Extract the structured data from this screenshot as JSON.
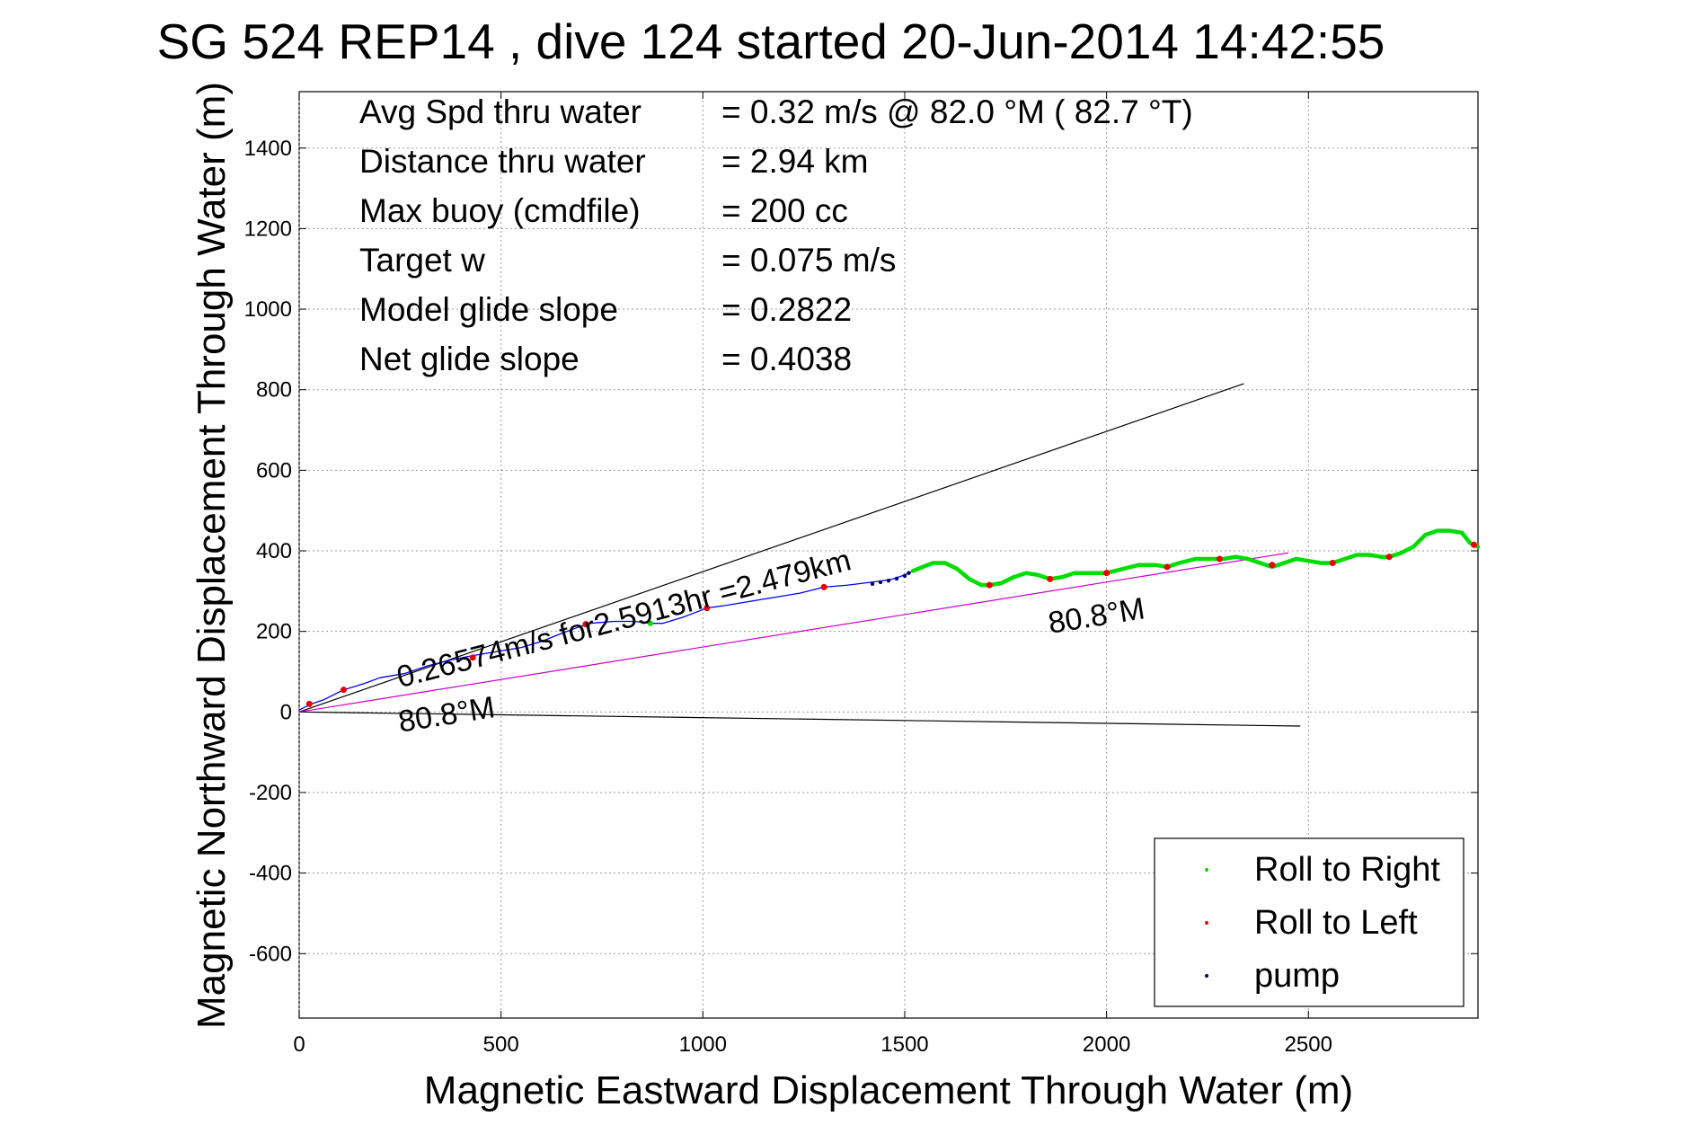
{
  "chart_data": {
    "type": "line",
    "title": "SG 524   REP14  , dive 124 started 20-Jun-2014 14:42:55",
    "xlabel": "Magnetic Eastward Displacement Through Water (m)",
    "ylabel": "Magnetic Northward Displacement Through Water (m)",
    "xlim": [
      0,
      2920
    ],
    "ylim": [
      -760,
      1540
    ],
    "xticks": [
      0,
      500,
      1000,
      1500,
      2000,
      2500
    ],
    "yticks": [
      -600,
      -400,
      -200,
      0,
      200,
      400,
      600,
      800,
      1000,
      1200,
      1400
    ],
    "grid": true,
    "legend": {
      "placement": "bottom-right",
      "entries": [
        {
          "label": "Roll to Right",
          "color": "#00dd00"
        },
        {
          "label": "Roll to Left",
          "color": "#ee0000"
        },
        {
          "label": "pump",
          "color": "#000066"
        }
      ]
    },
    "stats": [
      {
        "label": "Avg Spd thru water",
        "value": "=  0.32 m/s @  82.0 °M ( 82.7 °T)"
      },
      {
        "label": "Distance thru water",
        "value": "=  2.94 km"
      },
      {
        "label": "Max buoy (cmdfile)",
        "value": "= 200 cc"
      },
      {
        "label": "Target w",
        "value": "= 0.075 m/s"
      },
      {
        "label": "Model glide slope",
        "value": "= 0.2822"
      },
      {
        "label": "Net glide slope",
        "value": "= 0.4038"
      }
    ],
    "annotations": [
      {
        "text": "0.26574m/s for2.5913hr =2.479km",
        "x": 250,
        "y": 60,
        "angle_deg": 14.7
      },
      {
        "text": "80.8°M",
        "x": 250,
        "y": -50,
        "angle_deg": 9
      },
      {
        "text": "80.8°M",
        "x": 1860,
        "y": 195,
        "angle_deg": 9
      }
    ],
    "series": [
      {
        "name": "track",
        "color": "#0000ff",
        "x": [
          0,
          30,
          60,
          110,
          160,
          200,
          260,
          320,
          380,
          430,
          490,
          550,
          600,
          650,
          690,
          720,
          780,
          830,
          870,
          900,
          950,
          1010,
          1060,
          1120,
          1180,
          1240,
          1300,
          1360,
          1400,
          1440,
          1470,
          1500,
          1520
        ],
        "y": [
          5,
          20,
          30,
          55,
          70,
          85,
          95,
          115,
          130,
          140,
          150,
          160,
          175,
          195,
          210,
          220,
          225,
          225,
          220,
          220,
          235,
          258,
          265,
          275,
          285,
          295,
          310,
          315,
          320,
          325,
          330,
          340,
          350
        ]
      },
      {
        "name": "track-wavy",
        "color": "#00dd00",
        "x": [
          1520,
          1545,
          1570,
          1600,
          1630,
          1660,
          1690,
          1710,
          1740,
          1770,
          1800,
          1830,
          1860,
          1890,
          1920,
          1960,
          2000,
          2040,
          2080,
          2120,
          2150,
          2180,
          2220,
          2260,
          2290,
          2320,
          2350,
          2380,
          2410,
          2440,
          2470,
          2500,
          2530,
          2560,
          2590,
          2620,
          2650,
          2680,
          2700,
          2730,
          2760,
          2790,
          2820,
          2850,
          2880,
          2900,
          2920
        ],
        "y": [
          350,
          360,
          370,
          370,
          355,
          330,
          315,
          315,
          320,
          335,
          345,
          340,
          330,
          335,
          345,
          345,
          345,
          355,
          365,
          365,
          360,
          370,
          380,
          380,
          380,
          385,
          380,
          370,
          360,
          370,
          380,
          375,
          370,
          370,
          380,
          390,
          390,
          385,
          385,
          395,
          410,
          440,
          450,
          450,
          445,
          420,
          410
        ]
      }
    ],
    "lines": [
      {
        "name": "upper-reference",
        "color": "#000000",
        "x": [
          0,
          2340
        ],
        "y": [
          0,
          815
        ]
      },
      {
        "name": "lower-reference",
        "color": "#000000",
        "x": [
          0,
          2480
        ],
        "y": [
          0,
          -35
        ]
      },
      {
        "name": "heading-reference",
        "color": "#cc00cc",
        "x": [
          0,
          2450
        ],
        "y": [
          0,
          395
        ]
      }
    ],
    "roll_left_points": {
      "color": "#ee0000",
      "x": [
        25,
        110,
        430,
        710,
        1010,
        1300,
        1710,
        1860,
        2000,
        2150,
        2280,
        2410,
        2560,
        2700,
        2910
      ],
      "y": [
        20,
        55,
        135,
        218,
        258,
        310,
        315,
        330,
        345,
        360,
        380,
        365,
        370,
        385,
        415
      ]
    },
    "roll_right_points": {
      "color": "#00dd00",
      "x": [
        870
      ],
      "y": [
        220
      ]
    },
    "pump_points": {
      "color": "#000066",
      "x": [
        1420,
        1440,
        1460,
        1480,
        1500,
        1510
      ],
      "y": [
        318,
        322,
        326,
        331,
        338,
        345
      ]
    }
  }
}
